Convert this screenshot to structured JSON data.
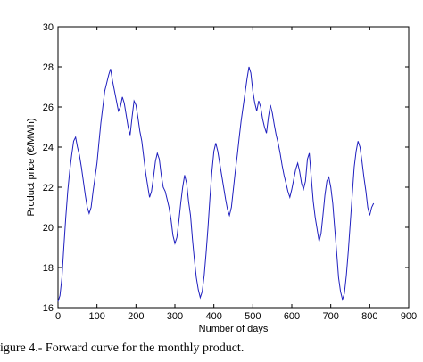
{
  "chart_data": {
    "type": "line",
    "title": "",
    "xlabel": "Number of days",
    "ylabel": "Product price (€/MWh)",
    "xlim": [
      0,
      900
    ],
    "ylim": [
      16,
      30
    ],
    "xticks": [
      "0",
      "100",
      "200",
      "300",
      "400",
      "500",
      "600",
      "700",
      "800",
      "900"
    ],
    "yticks": [
      "16",
      "18",
      "20",
      "22",
      "24",
      "26",
      "28",
      "30"
    ],
    "grid": false,
    "series": [
      {
        "color": "#1f1fbf",
        "x": [
          0,
          5,
          10,
          15,
          20,
          25,
          30,
          35,
          40,
          45,
          50,
          55,
          60,
          65,
          70,
          75,
          80,
          85,
          90,
          95,
          100,
          105,
          110,
          115,
          120,
          125,
          130,
          135,
          140,
          145,
          150,
          155,
          160,
          165,
          170,
          175,
          180,
          185,
          190,
          195,
          200,
          205,
          210,
          215,
          220,
          225,
          230,
          235,
          240,
          245,
          250,
          255,
          260,
          265,
          270,
          275,
          280,
          285,
          290,
          295,
          300,
          305,
          310,
          315,
          320,
          325,
          330,
          335,
          340,
          345,
          350,
          355,
          360,
          365,
          370,
          375,
          380,
          385,
          390,
          395,
          400,
          405,
          410,
          415,
          420,
          425,
          430,
          435,
          440,
          445,
          450,
          455,
          460,
          465,
          470,
          475,
          480,
          485,
          490,
          495,
          500,
          505,
          510,
          515,
          520,
          525,
          530,
          535,
          540,
          545,
          550,
          555,
          560,
          565,
          570,
          575,
          580,
          585,
          590,
          595,
          600,
          605,
          610,
          615,
          620,
          625,
          630,
          635,
          640,
          645,
          650,
          655,
          660,
          665,
          670,
          675,
          680,
          685,
          690,
          695,
          700,
          705,
          710,
          715,
          720,
          725,
          730,
          735,
          740,
          745,
          750,
          755,
          760,
          765,
          770,
          775,
          780,
          785,
          790,
          795,
          800,
          805,
          810
        ],
        "values": [
          16.3,
          16.6,
          17.5,
          19.0,
          20.5,
          21.8,
          22.8,
          23.6,
          24.3,
          24.5,
          24.0,
          23.6,
          23.0,
          22.3,
          21.6,
          21.0,
          20.7,
          21.0,
          21.8,
          22.5,
          23.2,
          24.2,
          25.2,
          26.0,
          26.8,
          27.2,
          27.6,
          27.9,
          27.3,
          26.8,
          26.3,
          25.8,
          26.0,
          26.5,
          26.2,
          25.6,
          25.0,
          24.6,
          25.5,
          26.3,
          26.1,
          25.5,
          24.8,
          24.3,
          23.5,
          22.7,
          22.1,
          21.5,
          21.8,
          22.5,
          23.3,
          23.7,
          23.4,
          22.6,
          22.0,
          21.8,
          21.4,
          21.0,
          20.4,
          19.6,
          19.2,
          19.5,
          20.3,
          21.2,
          22.0,
          22.6,
          22.2,
          21.3,
          20.6,
          19.4,
          18.4,
          17.5,
          16.9,
          16.5,
          16.8,
          17.6,
          18.7,
          20.0,
          21.5,
          22.8,
          23.8,
          24.2,
          23.8,
          23.2,
          22.6,
          22.0,
          21.4,
          20.9,
          20.6,
          21.0,
          21.9,
          22.8,
          23.6,
          24.5,
          25.3,
          26.0,
          26.7,
          27.4,
          28.0,
          27.7,
          26.8,
          26.2,
          25.8,
          26.3,
          26.0,
          25.4,
          25.0,
          24.7,
          25.5,
          26.1,
          25.7,
          25.1,
          24.6,
          24.2,
          23.7,
          23.1,
          22.6,
          22.2,
          21.8,
          21.5,
          21.9,
          22.4,
          22.9,
          23.2,
          22.8,
          22.2,
          21.9,
          22.3,
          23.4,
          23.7,
          22.5,
          21.3,
          20.5,
          19.9,
          19.3,
          19.7,
          20.6,
          21.6,
          22.3,
          22.5,
          22.0,
          21.2,
          20.0,
          18.8,
          17.5,
          16.8,
          16.4,
          16.7,
          17.6,
          18.8,
          20.2,
          21.6,
          23.0,
          23.8,
          24.3,
          24.0,
          23.3,
          22.5,
          21.8,
          21.0,
          20.6,
          21.0,
          21.2
        ]
      }
    ]
  },
  "caption": "igure 4.- Forward curve for the monthly product."
}
